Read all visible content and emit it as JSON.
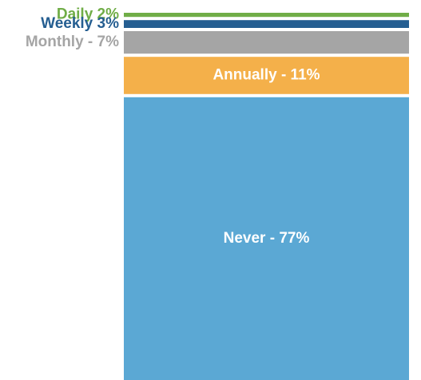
{
  "chart_data": {
    "type": "stacked-column",
    "values": [
      2,
      3,
      7,
      11,
      77
    ],
    "value_labels": [
      "Daily 2%",
      "Weekly 3%",
      "Monthly - 7%",
      "Annually - 11%",
      "Never - 77%"
    ],
    "colors": [
      "#70ad47",
      "#255e91",
      "#a5a5a5",
      "#f4b04a",
      "#5ba8d4"
    ],
    "ylim": [
      0,
      100
    ]
  }
}
